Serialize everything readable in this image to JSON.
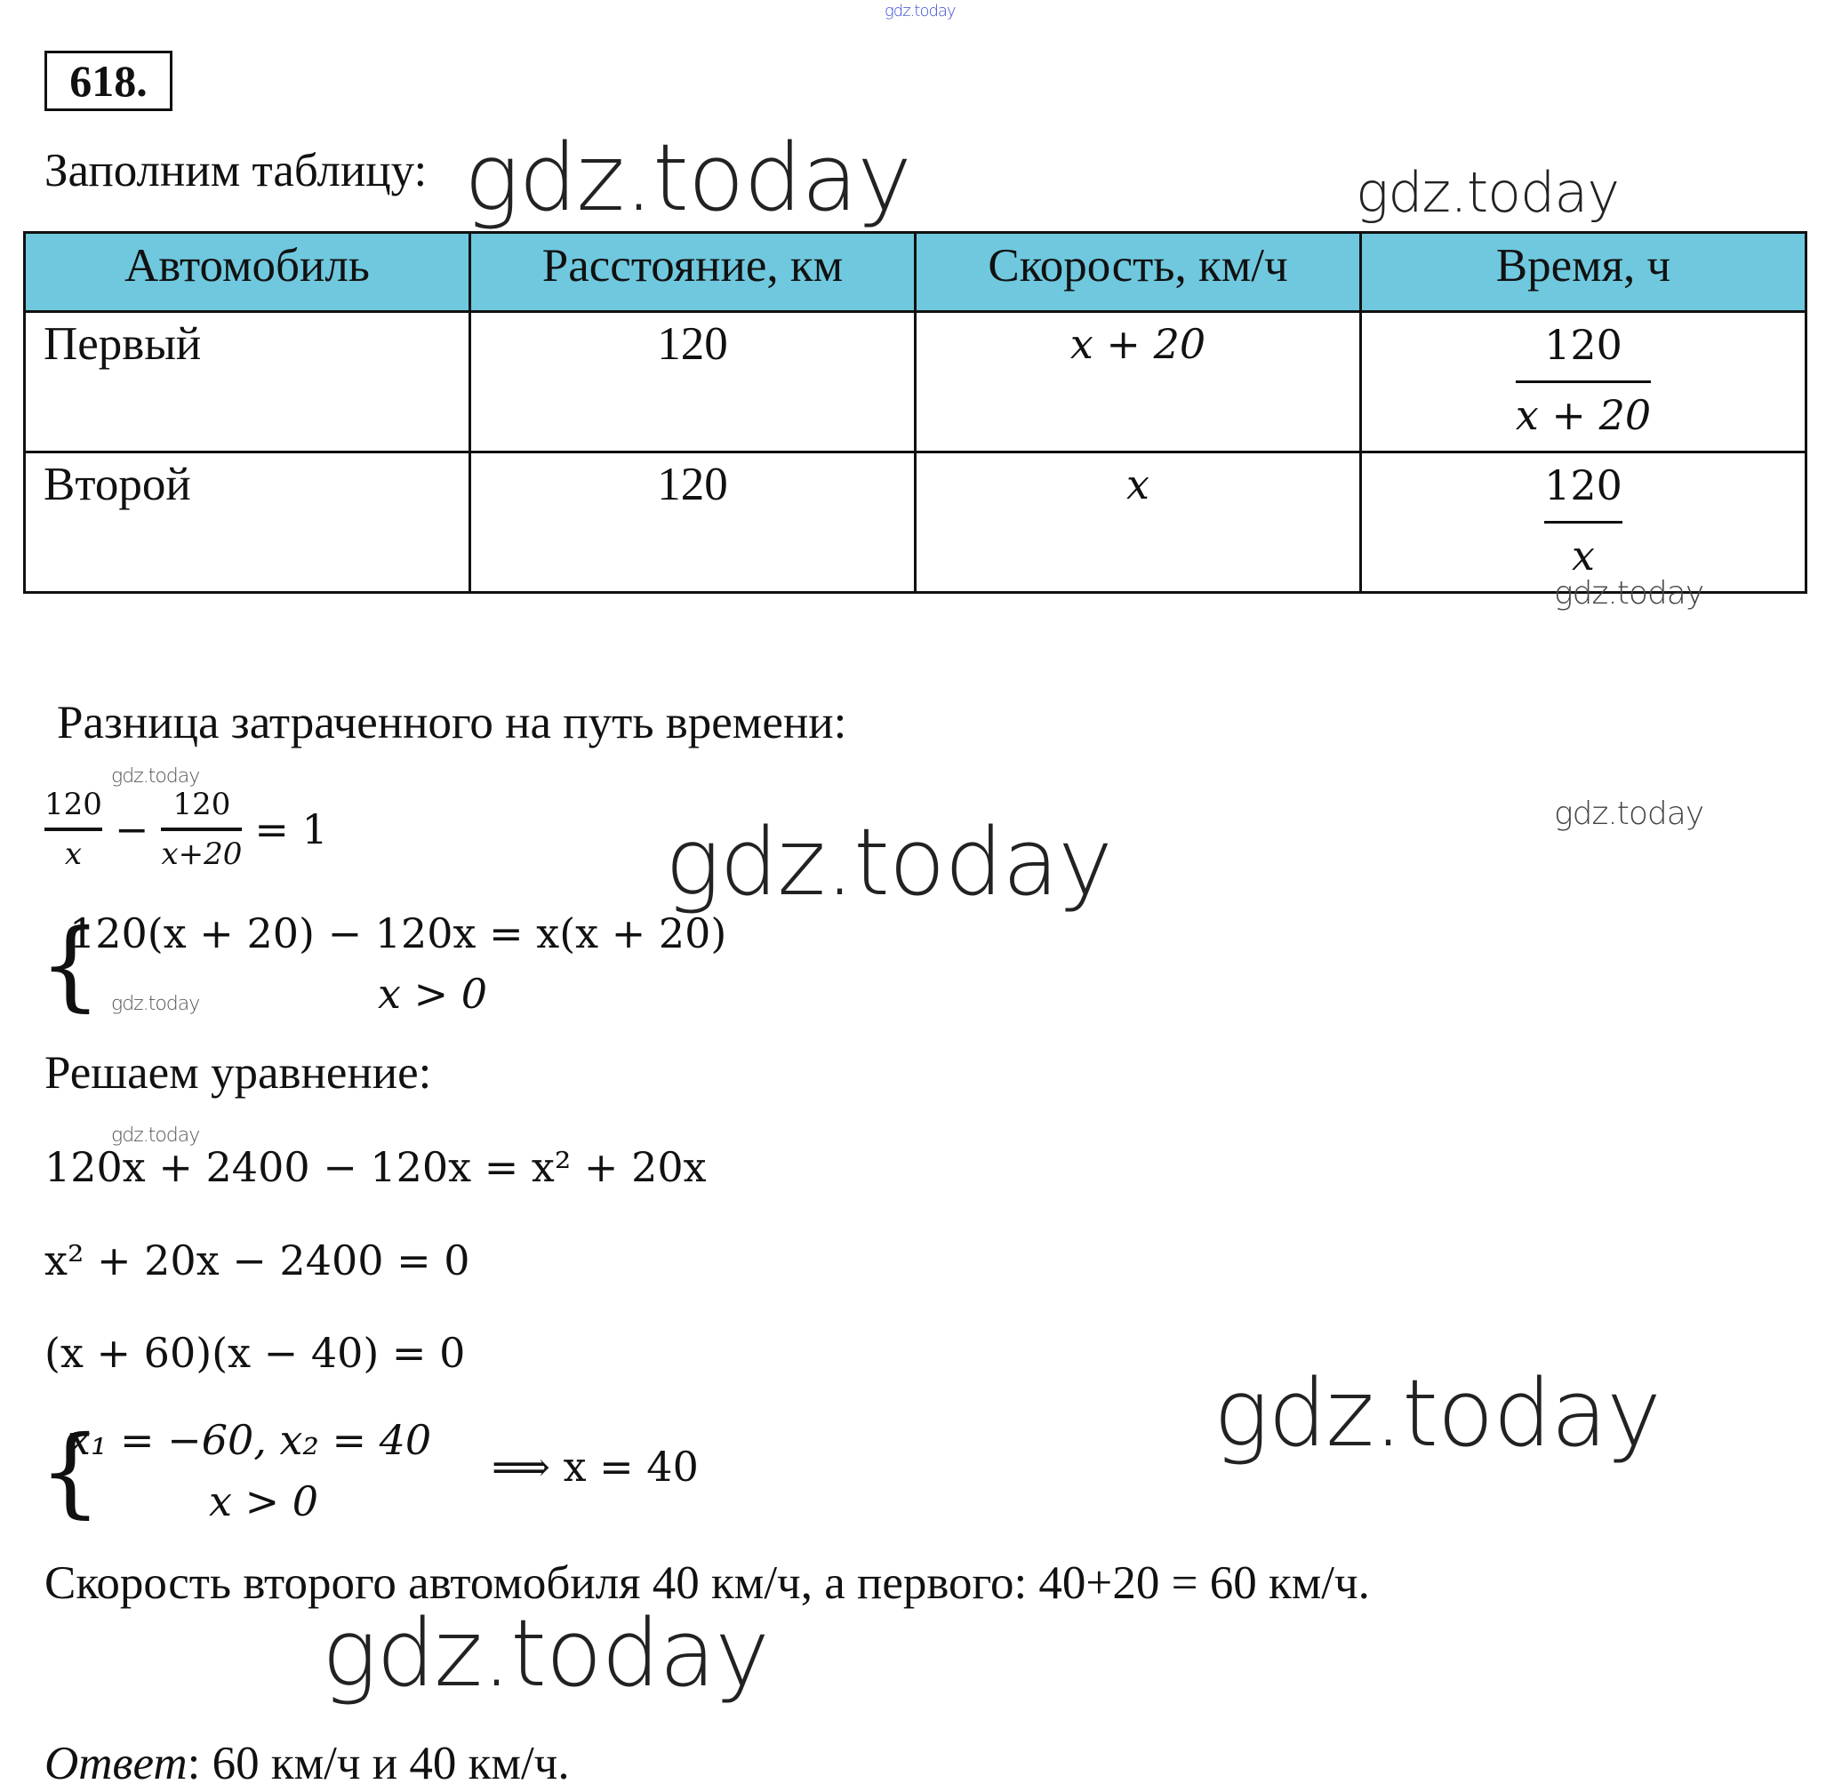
{
  "header_watermark": "gdz.today",
  "problem_number": "618.",
  "intro": "Заполним таблицу:",
  "watermark": "gdz.today",
  "table": {
    "header_color": "#6fc8de",
    "headers": [
      "Автомобиль",
      "Расстояние, км",
      "Скорость, км/ч",
      "Время, ч"
    ],
    "rows": [
      {
        "car": "Первый",
        "distance": "120",
        "speed": "x + 20",
        "time_num": "120",
        "time_den": "x + 20"
      },
      {
        "car": "Второй",
        "distance": "120",
        "speed": "x",
        "time_num": "120",
        "time_den": "x"
      }
    ]
  },
  "diff_title": "Разница затраченного на путь времени:",
  "equation": {
    "f1_num": "120",
    "f1_den": "x",
    "minus": "−",
    "f2_num": "120",
    "f2_den": "x+20",
    "rhs": "= 1"
  },
  "system1": [
    "120(x + 20) − 120x = x(x + 20)",
    "x > 0"
  ],
  "solve_title": "Решаем уравнение:",
  "steps": [
    "120x + 2400 − 120x = x² + 20x",
    "x² + 20x − 2400 = 0",
    "(x + 60)(x − 40) = 0"
  ],
  "system2": [
    "x₁ = −60, x₂ = 40",
    "x > 0"
  ],
  "implies": "⟹ x = 40",
  "conclusion": "Скорость второго автомобиля 40 км/ч, а первого: 40+20 = 60 км/ч.",
  "answer_label": "Ответ",
  "answer_text": ": 60 км/ч и 40 км/ч."
}
